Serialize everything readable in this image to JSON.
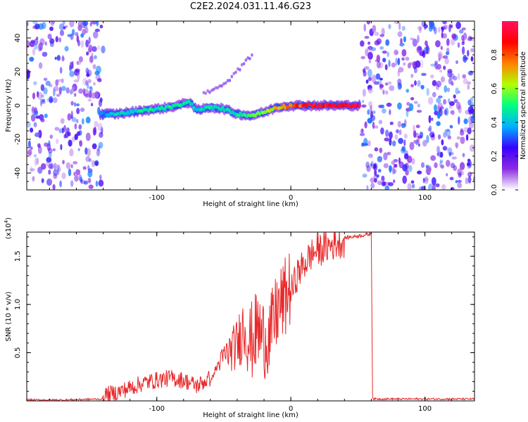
{
  "title": "C2E2.2024.031.11.46.G23",
  "chart_data": [
    {
      "type": "heatmap",
      "title": "C2E2.2024.031.11.46.G23",
      "xlabel": "Height of straight line (km)",
      "ylabel": "Frequency (Hz)",
      "xlim": [
        -197,
        137
      ],
      "ylim": [
        -50,
        50
      ],
      "x_ticks": [
        -100,
        0,
        100
      ],
      "y_ticks": [
        -40,
        -20,
        0,
        20,
        40
      ],
      "x_tick_labels": [
        "-100",
        "0",
        "100"
      ],
      "y_tick_labels": [
        "-40",
        "-20",
        "0",
        "20",
        "40"
      ],
      "colorbar": {
        "label": "Normalized spectral amplitude",
        "range": [
          0.0,
          1.0
        ],
        "ticks": [
          0.0,
          0.2,
          0.4,
          0.6,
          0.8
        ],
        "tick_labels": [
          "0.0",
          "0.2",
          "0.4",
          "0.6",
          "0.8"
        ],
        "colormap": [
          "#ffffff",
          "#8a2be2",
          "#3a00ff",
          "#00b0ff",
          "#00ff80",
          "#b0ff00",
          "#ff8000",
          "#ff0000",
          "#ff1060"
        ]
      },
      "noise_regions": [
        {
          "x_from": -197,
          "x_to": -140,
          "amplitude": 0.25
        },
        {
          "x_from": 53,
          "x_to": 137,
          "amplitude": 0.25
        }
      ],
      "signal_track": [
        {
          "x": -142,
          "y": -5,
          "amplitude": 0.35
        },
        {
          "x": -130,
          "y": -5,
          "amplitude": 0.45
        },
        {
          "x": -120,
          "y": -4,
          "amplitude": 0.45
        },
        {
          "x": -110,
          "y": -3,
          "amplitude": 0.48
        },
        {
          "x": -100,
          "y": -2,
          "amplitude": 0.5
        },
        {
          "x": -90,
          "y": -1,
          "amplitude": 0.5
        },
        {
          "x": -80,
          "y": 1,
          "amplitude": 0.5
        },
        {
          "x": -75,
          "y": 2,
          "amplitude": 0.48
        },
        {
          "x": -70,
          "y": -3,
          "amplitude": 0.45
        },
        {
          "x": -60,
          "y": -1,
          "amplitude": 0.5
        },
        {
          "x": -50,
          "y": -2,
          "amplitude": 0.45
        },
        {
          "x": -40,
          "y": -5,
          "amplitude": 0.48
        },
        {
          "x": -30,
          "y": -6,
          "amplitude": 0.55
        },
        {
          "x": -20,
          "y": -4,
          "amplitude": 0.6
        },
        {
          "x": -10,
          "y": -1,
          "amplitude": 0.7
        },
        {
          "x": 0,
          "y": 0,
          "amplitude": 0.8
        },
        {
          "x": 10,
          "y": 0,
          "amplitude": 0.9
        },
        {
          "x": 20,
          "y": 0,
          "amplitude": 0.95
        },
        {
          "x": 30,
          "y": 0,
          "amplitude": 1.0
        },
        {
          "x": 40,
          "y": 0,
          "amplitude": 1.0
        },
        {
          "x": 52,
          "y": 0,
          "amplitude": 1.0
        }
      ],
      "branch_track": [
        {
          "x": -65,
          "y": 7
        },
        {
          "x": -50,
          "y": 12
        },
        {
          "x": -38,
          "y": 22
        },
        {
          "x": -28,
          "y": 31
        }
      ]
    },
    {
      "type": "line",
      "xlabel": "Height of straight line (km)",
      "ylabel": "SNR (10 * v/v)",
      "y_multiplier_label": "(x10",
      "y_multiplier_exp": "4",
      "y_multiplier_close": ")",
      "xlim": [
        -197,
        137
      ],
      "ylim": [
        0,
        1.75
      ],
      "x_ticks": [
        -100,
        0,
        100
      ],
      "y_ticks": [
        0.5,
        1.0,
        1.5
      ],
      "x_tick_labels": [
        "-100",
        "0",
        "100"
      ],
      "y_tick_labels": [
        "0.5",
        "1.0",
        "1.5"
      ],
      "series": [
        {
          "color": "#e8282a",
          "x": [
            -197,
            -170,
            -140,
            -130,
            -120,
            -110,
            -100,
            -90,
            -80,
            -70,
            -60,
            -55,
            -50,
            -45,
            -40,
            -35,
            -30,
            -25,
            -20,
            -15,
            -10,
            -5,
            0,
            5,
            10,
            15,
            20,
            25,
            30,
            35,
            40,
            45,
            50,
            55,
            60,
            61,
            62,
            80,
            100,
            120,
            137
          ],
          "values": [
            0.01,
            0.01,
            0.02,
            0.05,
            0.1,
            0.15,
            0.18,
            0.2,
            0.18,
            0.12,
            0.2,
            0.35,
            0.45,
            0.5,
            0.55,
            0.75,
            0.55,
            0.7,
            0.6,
            0.65,
            0.9,
            1.0,
            1.15,
            1.35,
            1.45,
            1.55,
            1.6,
            1.62,
            1.65,
            1.68,
            1.69,
            1.7,
            1.71,
            1.72,
            1.73,
            0.03,
            0.02,
            0.02,
            0.02,
            0.02,
            0.02
          ]
        }
      ]
    }
  ]
}
